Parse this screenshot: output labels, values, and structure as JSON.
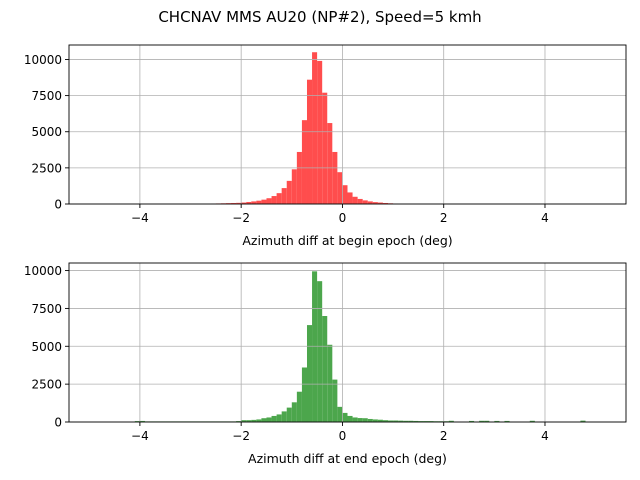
{
  "chart_data": {
    "title": "CHCNAV MMS AU20 (NP#2), Speed=5 kmh",
    "charts": [
      {
        "type": "bar",
        "chart_kind": "histogram",
        "color": "#ff4d4d",
        "xlabel": "Azimuth diff at begin epoch (deg)",
        "ylabel": "",
        "xlim": [
          -5.4,
          5.6
        ],
        "ylim": [
          0,
          11000
        ],
        "xticks": [
          -4,
          -2,
          0,
          2,
          4
        ],
        "xtick_labels": [
          "−4",
          "−2",
          "0",
          "2",
          "4"
        ],
        "yticks": [
          0,
          2500,
          5000,
          7500,
          10000
        ],
        "ytick_labels": [
          "0",
          "2500",
          "5000",
          "7500",
          "10000"
        ],
        "grid": true,
        "bin_width": 0.1,
        "x": [
          -2.6,
          -2.5,
          -2.4,
          -2.3,
          -2.2,
          -2.1,
          -2.0,
          -1.9,
          -1.8,
          -1.7,
          -1.6,
          -1.5,
          -1.4,
          -1.3,
          -1.2,
          -1.1,
          -1.0,
          -0.9,
          -0.8,
          -0.7,
          -0.6,
          -0.5,
          -0.4,
          -0.3,
          -0.2,
          -0.1,
          0.0,
          0.1,
          0.2,
          0.3,
          0.4,
          0.5,
          0.6,
          0.7,
          0.8,
          0.9,
          1.0
        ],
        "values": [
          30,
          40,
          50,
          60,
          70,
          80,
          100,
          140,
          180,
          230,
          300,
          400,
          550,
          750,
          1100,
          1600,
          2400,
          3600,
          5800,
          8600,
          10500,
          9900,
          7700,
          5600,
          3600,
          2200,
          1300,
          800,
          500,
          350,
          250,
          180,
          130,
          100,
          70,
          50,
          30
        ]
      },
      {
        "type": "bar",
        "chart_kind": "histogram",
        "color": "#4ca64c",
        "xlabel": "Azimuth diff at end epoch (deg)",
        "ylabel": "",
        "xlim": [
          -5.4,
          5.6
        ],
        "ylim": [
          0,
          10500
        ],
        "xticks": [
          -4,
          -2,
          0,
          2,
          4
        ],
        "xtick_labels": [
          "−4",
          "−2",
          "0",
          "2",
          "4"
        ],
        "yticks": [
          0,
          2500,
          5000,
          7500,
          10000
        ],
        "ytick_labels": [
          "0",
          "2500",
          "5000",
          "7500",
          "10000"
        ],
        "grid": true,
        "bin_width": 0.1,
        "x": [
          -4.1,
          -4.0,
          -3.9,
          -3.8,
          -3.7,
          -3.6,
          -3.5,
          -3.4,
          -3.3,
          -3.2,
          -3.1,
          -3.0,
          -2.9,
          -2.8,
          -2.7,
          -2.6,
          -2.5,
          -2.4,
          -2.3,
          -2.2,
          -2.1,
          -2.0,
          -1.9,
          -1.8,
          -1.7,
          -1.6,
          -1.5,
          -1.4,
          -1.3,
          -1.2,
          -1.1,
          -1.0,
          -0.9,
          -0.8,
          -0.7,
          -0.6,
          -0.5,
          -0.4,
          -0.3,
          -0.2,
          -0.1,
          0.0,
          0.1,
          0.2,
          0.3,
          0.4,
          0.5,
          0.6,
          0.7,
          0.8,
          0.9,
          1.0,
          1.1,
          1.2,
          1.3,
          1.4,
          1.5,
          1.6,
          1.7,
          1.8,
          1.9,
          2.0,
          2.1,
          2.5,
          2.7,
          2.8,
          3.0,
          3.2,
          3.7,
          4.7
        ],
        "values": [
          60,
          70,
          40,
          40,
          40,
          40,
          40,
          40,
          40,
          40,
          40,
          40,
          40,
          40,
          40,
          40,
          40,
          40,
          40,
          40,
          60,
          120,
          120,
          140,
          170,
          250,
          300,
          400,
          500,
          700,
          950,
          1300,
          2000,
          3600,
          6400,
          9950,
          9300,
          7000,
          5100,
          2800,
          1000,
          600,
          400,
          300,
          260,
          250,
          200,
          170,
          150,
          120,
          100,
          100,
          90,
          80,
          80,
          70,
          60,
          60,
          60,
          50,
          50,
          50,
          80,
          70,
          80,
          80,
          70,
          70,
          80,
          90
        ]
      }
    ]
  }
}
